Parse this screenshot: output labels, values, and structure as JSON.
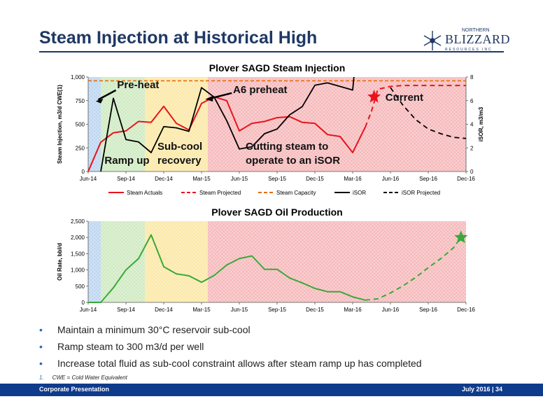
{
  "slide": {
    "title": "Steam Injection at Historical High",
    "logo_top": "NORTHERN",
    "logo_main": "BLIZZARD",
    "logo_sub": "RESOURCES INC",
    "bullets": [
      "Maintain a minimum 30°C reservoir sub-cool",
      "Ramp steam to 300 m3/d per well",
      "Increase total fluid as sub-cool constraint allows after steam ramp up has completed"
    ],
    "footnote_num": "1.",
    "footnote": "CWE = Cold Water Equivalent",
    "footer_left": "Corporate Presentation",
    "footer_right": "July 2016 | 34"
  },
  "colors": {
    "brand": "#1f3864",
    "footer": "#0f3b8c",
    "steam": "#e8141c",
    "capacity": "#e36c09",
    "isor": "#000000",
    "oil": "#3aa83a",
    "phase_preheat": "#bcd6f0",
    "phase_rampup": "#cfeac2",
    "phase_subcool": "#fbe8a6",
    "phase_cutting": "#f6b9bb"
  },
  "chart_data": [
    {
      "type": "line",
      "title": "Plover SAGD Steam Injection",
      "ylabel": "Steam Injection, m3/d CWE(1)",
      "y2label": "iSOR, m3/m3",
      "ylim": [
        0,
        1000
      ],
      "y2lim": [
        0,
        8
      ],
      "yticks": [
        "0",
        "250",
        "500",
        "750",
        "1,000"
      ],
      "y2ticks": [
        "0",
        "2",
        "4",
        "6",
        "8"
      ],
      "xlim": [
        0,
        30
      ],
      "x_ticks": [
        {
          "i": 0,
          "label": "Jun-14"
        },
        {
          "i": 3,
          "label": "Sep-14"
        },
        {
          "i": 6,
          "label": "Dec-14"
        },
        {
          "i": 9,
          "label": "Mar-15"
        },
        {
          "i": 12,
          "label": "Jun-15"
        },
        {
          "i": 15,
          "label": "Sep-15"
        },
        {
          "i": 18,
          "label": "Dec-15"
        },
        {
          "i": 21,
          "label": "Mar-16"
        },
        {
          "i": 24,
          "label": "Jun-16"
        },
        {
          "i": 27,
          "label": "Sep-16"
        },
        {
          "i": 30,
          "label": "Dec-16"
        }
      ],
      "phases": [
        {
          "name": "Pre-heat",
          "from": 0,
          "to": 1,
          "color": "#bcd6f0"
        },
        {
          "name": "Ramp up",
          "from": 1,
          "to": 4.5,
          "color": "#cfeac2"
        },
        {
          "name": "Sub-cool recovery",
          "from": 4.5,
          "to": 9.5,
          "color": "#fbe8a6"
        },
        {
          "name": "Cutting steam to operate to an iSOR",
          "from": 9.5,
          "to": 30,
          "color": "#f6b9bb"
        }
      ],
      "annotations": [
        {
          "text": "Pre-heat",
          "x": 2.3,
          "y": 880
        },
        {
          "text": "Ramp up",
          "x": 1.3,
          "y": 80
        },
        {
          "text": "Sub-cool",
          "x": 5.5,
          "y": 230
        },
        {
          "text": "recovery",
          "x": 5.5,
          "y": 80
        },
        {
          "text": "A6 preheat",
          "x": 11.5,
          "y": 830
        },
        {
          "text": "Cutting steam to",
          "x": 12.5,
          "y": 230
        },
        {
          "text": "operate to an iSOR",
          "x": 12.5,
          "y": 80
        },
        {
          "text": "Current",
          "x": 23.6,
          "y": 750
        }
      ],
      "current_marker": {
        "x": 22.7,
        "y": 790
      },
      "series": [
        {
          "name": "Steam Actuals",
          "axis": "left",
          "style": "solid",
          "x": [
            0,
            1,
            2,
            3,
            4,
            5,
            6,
            7,
            8,
            9,
            10,
            11,
            12,
            13,
            14,
            15,
            16,
            17,
            18,
            19,
            20,
            21,
            22
          ],
          "values": [
            0,
            310,
            410,
            430,
            530,
            520,
            690,
            510,
            440,
            720,
            790,
            750,
            430,
            510,
            530,
            570,
            580,
            520,
            510,
            390,
            370,
            200,
            470
          ]
        },
        {
          "name": "Steam Projected",
          "axis": "left",
          "style": "dashed",
          "x": [
            22,
            22.5,
            23,
            24,
            25,
            26,
            27,
            28,
            29,
            30
          ],
          "values": [
            470,
            640,
            870,
            900,
            910,
            910,
            910,
            910,
            910,
            910
          ]
        },
        {
          "name": "Steam Capacity",
          "axis": "left",
          "style": "dashed",
          "x": [
            0,
            30
          ],
          "values": [
            960,
            960
          ]
        },
        {
          "name": "iSOR",
          "axis": "right",
          "style": "solid",
          "x": [
            1,
            2,
            3,
            4,
            5,
            6,
            7,
            8,
            9,
            10,
            11,
            12,
            13,
            14,
            15,
            16,
            17,
            18,
            19,
            20,
            21,
            21.1
          ],
          "values": [
            0,
            6.2,
            2.7,
            2.5,
            1.6,
            3.8,
            3.7,
            3.4,
            7.1,
            6.3,
            4.3,
            1.9,
            2.1,
            3.2,
            3.6,
            4.8,
            5.5,
            7.3,
            7.5,
            7.2,
            6.9,
            8
          ]
        },
        {
          "name": "iSOR Projected",
          "axis": "right",
          "style": "dashed",
          "x": [
            24,
            25,
            26,
            27,
            28,
            29,
            30
          ],
          "values": [
            7.1,
            5.6,
            4.4,
            3.6,
            3.2,
            2.9,
            2.8
          ]
        }
      ],
      "legend": [
        "Steam Actuals",
        "Steam Projected",
        "Steam Capacity",
        "iSOR",
        "iSOR Projected"
      ],
      "legend_position": "bottom"
    },
    {
      "type": "line",
      "title": "Plover SAGD Oil Production",
      "ylabel": "Oil Rate, bbl/d",
      "ylim": [
        0,
        2500
      ],
      "yticks": [
        "0",
        "500",
        "1,000",
        "1,500",
        "2,000",
        "2,500"
      ],
      "xlim": [
        0,
        30
      ],
      "x_ticks": [
        {
          "i": 0,
          "label": "Jun-14"
        },
        {
          "i": 3,
          "label": "Sep-14"
        },
        {
          "i": 6,
          "label": "Dec-14"
        },
        {
          "i": 9,
          "label": "Mar-15"
        },
        {
          "i": 12,
          "label": "Jun-15"
        },
        {
          "i": 15,
          "label": "Sep-15"
        },
        {
          "i": 18,
          "label": "Dec-15"
        },
        {
          "i": 21,
          "label": "Mar-16"
        },
        {
          "i": 24,
          "label": "Jun-16"
        },
        {
          "i": 27,
          "label": "Sep-16"
        },
        {
          "i": 30,
          "label": "Dec-16"
        }
      ],
      "target_marker": {
        "x": 29.6,
        "y": 2000
      },
      "series": [
        {
          "name": "Oil Actuals",
          "style": "solid",
          "x": [
            0,
            1,
            2,
            3,
            4,
            5,
            6,
            7,
            8,
            9,
            10,
            11,
            12,
            13,
            14,
            15,
            16,
            17,
            18,
            19,
            20,
            21,
            22
          ],
          "values": [
            0,
            0,
            450,
            1000,
            1350,
            2080,
            1100,
            880,
            820,
            620,
            830,
            1150,
            1350,
            1430,
            1020,
            1020,
            750,
            600,
            430,
            330,
            330,
            170,
            70
          ]
        },
        {
          "name": "Oil Projected",
          "style": "dashed",
          "x": [
            22,
            23,
            24,
            25,
            26,
            27,
            28,
            29,
            29.6
          ],
          "values": [
            70,
            110,
            290,
            510,
            770,
            1070,
            1350,
            1680,
            2000
          ]
        }
      ]
    }
  ]
}
